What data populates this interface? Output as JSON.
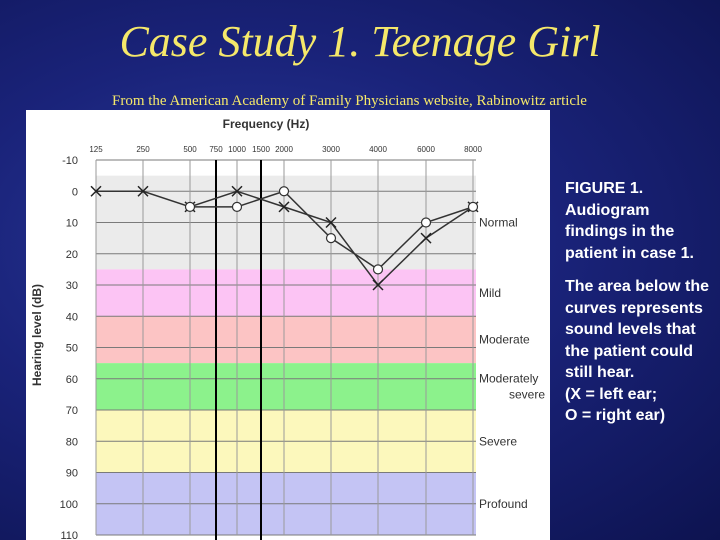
{
  "slide": {
    "title": "Case Study 1.  Teenage Girl",
    "subtitle": "From the American Academy of Family Physicians website, Rabinowitz article"
  },
  "caption": {
    "figure_text": "FIGURE 1. Audiogram findings in the patient in case 1.",
    "description": "The area below the curves represents sound levels that the patient could still hear.\n(X = left ear;\nO = right ear)"
  },
  "colors": {
    "title": "#f5e86a",
    "background": "#1a237a",
    "normal_band": "#ebebeb",
    "mild_band": "#fcc4f4",
    "moderate_band": "#fcc4c4",
    "moderately_severe_band": "#8cf28c",
    "severe_band": "#fcf8bc",
    "profound_band": "#c4c4f4"
  },
  "chart_data": {
    "type": "line",
    "title": "",
    "xlabel": "Frequency (Hz)",
    "ylabel": "Hearing level (dB)",
    "x_ticks": [
      "125",
      "250",
      "500",
      "750",
      "1000",
      "1500",
      "2000",
      "3000",
      "4000",
      "6000",
      "8000"
    ],
    "y_ticks": [
      "-10",
      "0",
      "10",
      "20",
      "30",
      "40",
      "50",
      "60",
      "70",
      "80",
      "90",
      "100",
      "110"
    ],
    "ylim": [
      -10,
      110
    ],
    "y_inverted": true,
    "grid": true,
    "bands": [
      {
        "label": "Normal",
        "from": -5,
        "to": 25
      },
      {
        "label": "Mild",
        "from": 25,
        "to": 40
      },
      {
        "label": "Moderate",
        "from": 40,
        "to": 55
      },
      {
        "label": "Moderately severe",
        "from": 55,
        "to": 70
      },
      {
        "label": "Severe",
        "from": 70,
        "to": 90
      },
      {
        "label": "Profound",
        "from": 90,
        "to": 110
      }
    ],
    "series": [
      {
        "name": "X = left ear",
        "marker": "x",
        "x": [
          "125",
          "250",
          "500",
          "1000",
          "2000",
          "3000",
          "4000",
          "6000",
          "8000"
        ],
        "values": [
          0,
          0,
          5,
          0,
          5,
          10,
          30,
          15,
          5
        ]
      },
      {
        "name": "O = right ear",
        "marker": "o",
        "x": [
          "500",
          "1000",
          "2000",
          "3000",
          "4000",
          "6000",
          "8000"
        ],
        "values": [
          5,
          5,
          0,
          15,
          25,
          10,
          5
        ]
      }
    ]
  }
}
